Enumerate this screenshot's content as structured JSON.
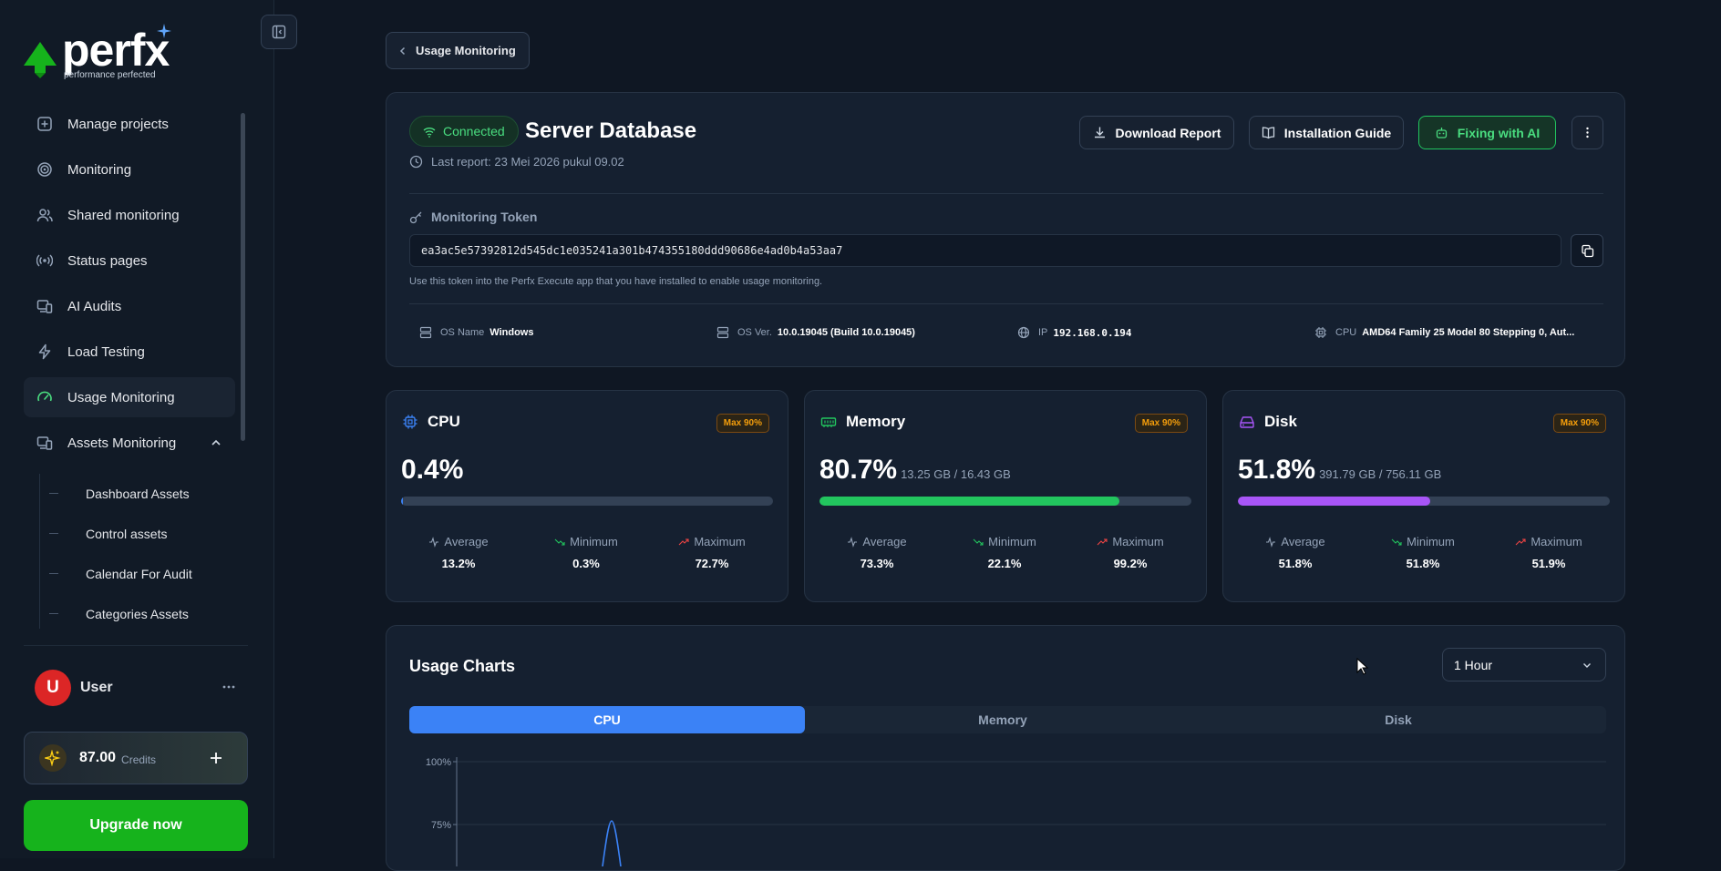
{
  "brand": {
    "name": "perfx",
    "tagline": "performance perfected",
    "accent": "#22c55e"
  },
  "sidebar": {
    "items": [
      {
        "label": "Manage projects",
        "icon": "plus-square-icon"
      },
      {
        "label": "Monitoring",
        "icon": "target-icon"
      },
      {
        "label": "Shared monitoring",
        "icon": "users-icon"
      },
      {
        "label": "Status pages",
        "icon": "broadcast-icon"
      },
      {
        "label": "AI Audits",
        "icon": "devices-icon"
      },
      {
        "label": "Load Testing",
        "icon": "bolt-icon"
      },
      {
        "label": "Usage Monitoring",
        "icon": "gauge-icon",
        "active": true
      },
      {
        "label": "Assets Monitoring",
        "icon": "devices-icon",
        "expanded": true
      }
    ],
    "sub_items": [
      "Dashboard Assets",
      "Control assets",
      "Calendar For Audit",
      "Categories Assets"
    ]
  },
  "user": {
    "initial": "U",
    "name": "User"
  },
  "credits": {
    "amount": "87.00",
    "label": "Credits"
  },
  "upgrade_label": "Upgrade now",
  "breadcrumb": {
    "back_label": "Usage Monitoring"
  },
  "server": {
    "status": "Connected",
    "name": "Server Database",
    "last_report": "Last report: 23 Mei 2026 pukul 09.02",
    "actions": {
      "download": "Download Report",
      "guide": "Installation Guide",
      "ai": "Fixing with AI"
    },
    "token_label": "Monitoring Token",
    "token": "ea3ac5e57392812d545dc1e035241a301b474355180ddd90686e4ad0b4a53aa7",
    "token_help": "Use this token into the Perfx Execute app that you have installed to enable usage monitoring.",
    "info": {
      "os_name_label": "OS Name",
      "os_name": "Windows",
      "os_ver_label": "OS Ver.",
      "os_ver": "10.0.19045 (Build 10.0.19045)",
      "ip_label": "IP",
      "ip": "192.168.0.194",
      "cpu_label": "CPU",
      "cpu": "AMD64 Family 25 Model 80 Stepping 0, Aut..."
    }
  },
  "metrics": [
    {
      "name": "CPU",
      "badge": "Max 90%",
      "value": "0.4%",
      "detail": "",
      "percent": 0.4,
      "color": "#3b82f6",
      "icon": "cpu-icon",
      "icon_color": "#3b82f6",
      "average": "13.2%",
      "minimum": "0.3%",
      "maximum": "72.7%"
    },
    {
      "name": "Memory",
      "badge": "Max 90%",
      "value": "80.7%",
      "detail": "13.25 GB / 16.43 GB",
      "percent": 80.7,
      "color": "#22c55e",
      "icon": "memory-icon",
      "icon_color": "#22c55e",
      "average": "73.3%",
      "minimum": "22.1%",
      "maximum": "99.2%"
    },
    {
      "name": "Disk",
      "badge": "Max 90%",
      "value": "51.8%",
      "detail": "391.79 GB / 756.11 GB",
      "percent": 51.8,
      "color": "#a855f7",
      "icon": "disk-icon",
      "icon_color": "#a855f7",
      "average": "51.8%",
      "minimum": "51.8%",
      "maximum": "51.9%"
    }
  ],
  "stat_labels": {
    "average": "Average",
    "minimum": "Minimum",
    "maximum": "Maximum"
  },
  "usage_charts": {
    "title": "Usage Charts",
    "range": "1 Hour",
    "tabs": [
      "CPU",
      "Memory",
      "Disk"
    ],
    "active_tab": "CPU",
    "y_ticks": [
      "100%",
      "75%"
    ]
  }
}
